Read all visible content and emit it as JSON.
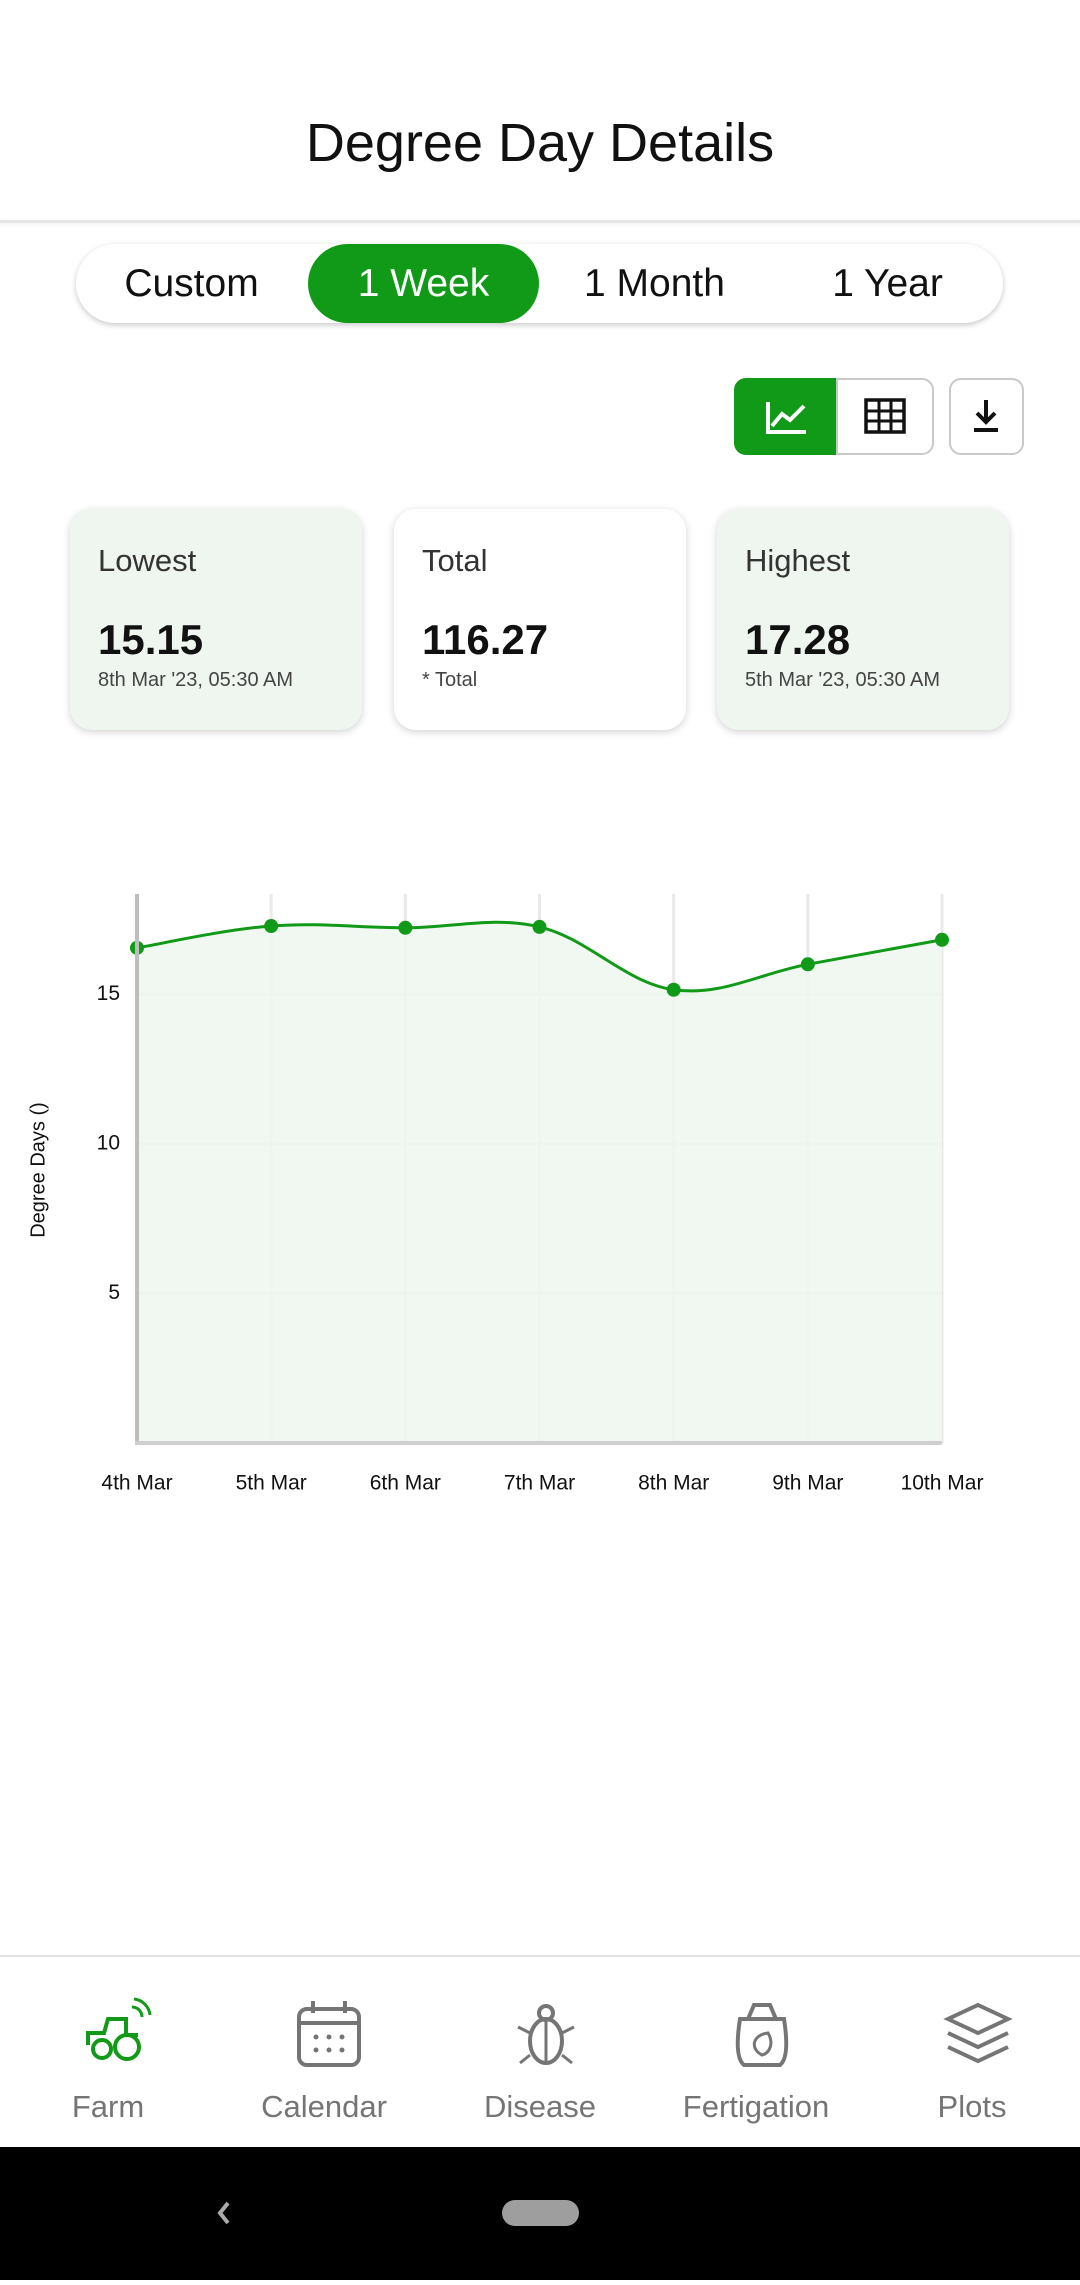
{
  "header": {
    "title": "Degree Day Details"
  },
  "tabs": [
    "Custom",
    "1 Week",
    "1 Month",
    "1 Year"
  ],
  "active_tab": 1,
  "cards": [
    {
      "label": "Lowest",
      "value": 15.15,
      "note": "8th Mar '23, 05:30 AM"
    },
    {
      "label": "Total",
      "value": 116.27,
      "note": "* Total"
    },
    {
      "label": "Highest",
      "value": 17.28,
      "note": "5th Mar '23, 05:30 AM"
    }
  ],
  "chart_data": {
    "type": "line",
    "y_label": "Degree Days ()",
    "categories": [
      "4th Mar",
      "5th Mar",
      "6th Mar",
      "7th Mar",
      "8th Mar",
      "9th Mar",
      "10th Mar"
    ],
    "values": [
      16.55,
      17.28,
      17.22,
      17.25,
      15.15,
      16.0,
      16.82
    ],
    "color": "#109a17",
    "fill": "#eef6ef",
    "ylim": [
      0,
      18.35
    ],
    "yticks": [
      5,
      10,
      15
    ],
    "grid": true
  },
  "nav": [
    "Farm",
    "Calendar",
    "Disease",
    "Fertigation",
    "Plots"
  ],
  "active_nav": 0
}
